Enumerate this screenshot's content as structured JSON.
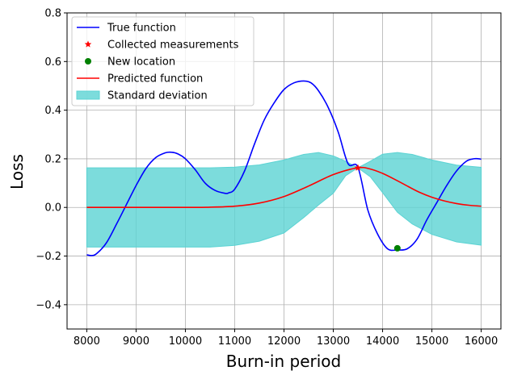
{
  "chart_data": {
    "type": "line",
    "xlabel": "Burn-in period",
    "ylabel": "Loss",
    "xlim": [
      7600,
      16400
    ],
    "ylim": [
      -0.5,
      0.8
    ],
    "xticks": [
      8000,
      9000,
      10000,
      11000,
      12000,
      13000,
      14000,
      15000,
      16000
    ],
    "yticks": [
      -0.4,
      -0.2,
      0.0,
      0.2,
      0.4,
      0.6,
      0.8
    ],
    "ytick_labels": [
      "−0.4",
      "−0.2",
      "0.0",
      "0.2",
      "0.4",
      "0.6",
      "0.8"
    ],
    "grid": true,
    "legend_position": "top-left",
    "legend": [
      {
        "label": "True function",
        "marker": "line",
        "color": "#0000ff"
      },
      {
        "label": "Collected measurements",
        "marker": "star",
        "color": "#ff0000"
      },
      {
        "label": "New location",
        "marker": "circle",
        "color": "#008000"
      },
      {
        "label": "Predicted function",
        "marker": "line",
        "color": "#ff0000"
      },
      {
        "label": "Standard deviation",
        "marker": "patch",
        "color": "#5bd3d3"
      }
    ],
    "series": [
      {
        "name": "True function",
        "color": "#0000ff",
        "x": [
          8000,
          8100,
          8200,
          8400,
          8600,
          8800,
          9000,
          9200,
          9400,
          9600,
          9720,
          9850,
          10000,
          10200,
          10400,
          10600,
          10800,
          10880,
          11000,
          11200,
          11400,
          11600,
          11800,
          12000,
          12200,
          12400,
          12550,
          12700,
          12900,
          13100,
          13300,
          13500,
          13700,
          13900,
          14100,
          14300,
          14500,
          14700,
          14900,
          15100,
          15300,
          15500,
          15700,
          15850,
          15950,
          16000
        ],
        "y": [
          -0.195,
          -0.198,
          -0.19,
          -0.145,
          -0.07,
          0.01,
          0.09,
          0.16,
          0.205,
          0.225,
          0.227,
          0.22,
          0.2,
          0.155,
          0.1,
          0.07,
          0.058,
          0.06,
          0.075,
          0.15,
          0.26,
          0.36,
          0.43,
          0.485,
          0.512,
          0.52,
          0.512,
          0.48,
          0.41,
          0.31,
          0.18,
          0.165,
          -0.01,
          -0.11,
          -0.17,
          -0.175,
          -0.17,
          -0.13,
          -0.05,
          0.02,
          0.09,
          0.15,
          0.19,
          0.2,
          0.2,
          0.198
        ]
      },
      {
        "name": "Predicted function",
        "color": "#ff0000",
        "x": [
          8000,
          9000,
          10000,
          10500,
          11000,
          11500,
          12000,
          12500,
          13000,
          13500,
          13750,
          14000,
          14250,
          14500,
          14750,
          15000,
          15250,
          15500,
          15750,
          16000
        ],
        "y": [
          0.0,
          0.0,
          0.0,
          0.001,
          0.005,
          0.018,
          0.045,
          0.088,
          0.135,
          0.163,
          0.158,
          0.14,
          0.115,
          0.088,
          0.062,
          0.042,
          0.027,
          0.016,
          0.009,
          0.005
        ]
      },
      {
        "name": "Standard deviation",
        "color": "#5bd3d3",
        "x": [
          8000,
          9000,
          10000,
          10500,
          11000,
          11500,
          12000,
          12400,
          12700,
          13000,
          13250,
          13500,
          13750,
          14000,
          14300,
          14600,
          15000,
          15500,
          16000
        ],
        "upper": [
          0.163,
          0.163,
          0.163,
          0.163,
          0.166,
          0.175,
          0.195,
          0.218,
          0.226,
          0.212,
          0.19,
          0.163,
          0.19,
          0.219,
          0.226,
          0.218,
          0.195,
          0.174,
          0.165
        ],
        "lower": [
          -0.163,
          -0.163,
          -0.163,
          -0.163,
          -0.156,
          -0.139,
          -0.105,
          -0.042,
          0.01,
          0.058,
          0.13,
          0.163,
          0.126,
          0.061,
          -0.02,
          -0.068,
          -0.111,
          -0.142,
          -0.155
        ]
      }
    ],
    "measurements": [
      {
        "x": 13500,
        "y": 0.163
      }
    ],
    "new_location": [
      {
        "x": 14300,
        "y": -0.168
      }
    ]
  }
}
